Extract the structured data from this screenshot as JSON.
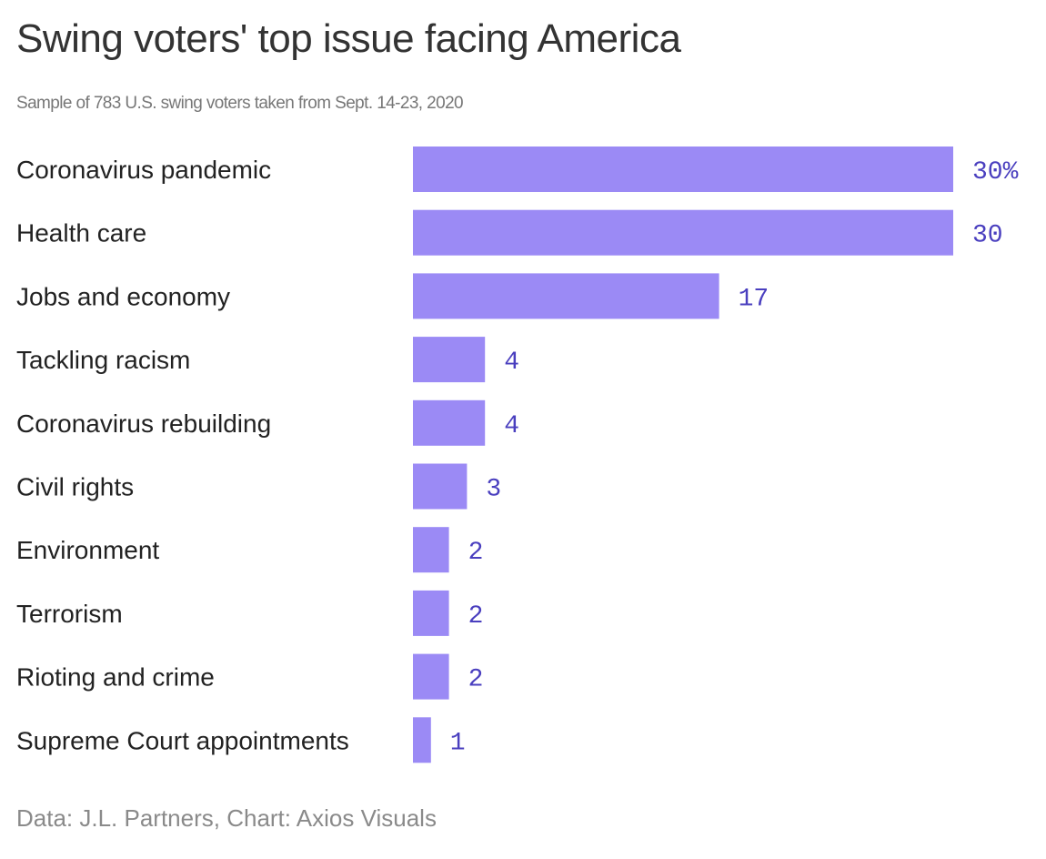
{
  "chart_data": {
    "type": "bar",
    "orientation": "horizontal",
    "title": "Swing voters' top issue facing America",
    "subtitle": "Sample of 783 U.S. swing voters taken from Sept. 14-23, 2020",
    "source": "Data: J.L. Partners, Chart: Axios Visuals",
    "categories": [
      "Coronavirus pandemic",
      "Health care",
      "Jobs and economy",
      "Tackling racism",
      "Coronavirus rebuilding",
      "Civil rights",
      "Environment",
      "Terrorism",
      "Rioting and crime",
      "Supreme Court appointments"
    ],
    "values": [
      30,
      30,
      17,
      4,
      4,
      3,
      2,
      2,
      2,
      1
    ],
    "value_labels": [
      "30%",
      "30",
      "17",
      "4",
      "4",
      "3",
      "2",
      "2",
      "2",
      "1"
    ],
    "unit": "%",
    "xlim": [
      0,
      30
    ],
    "xlabel": "",
    "ylabel": "",
    "grid": false,
    "legend": "none",
    "colors": {
      "bar": "#9b8af5",
      "value_text": "#4a3fbf",
      "label_text": "#222222"
    }
  }
}
